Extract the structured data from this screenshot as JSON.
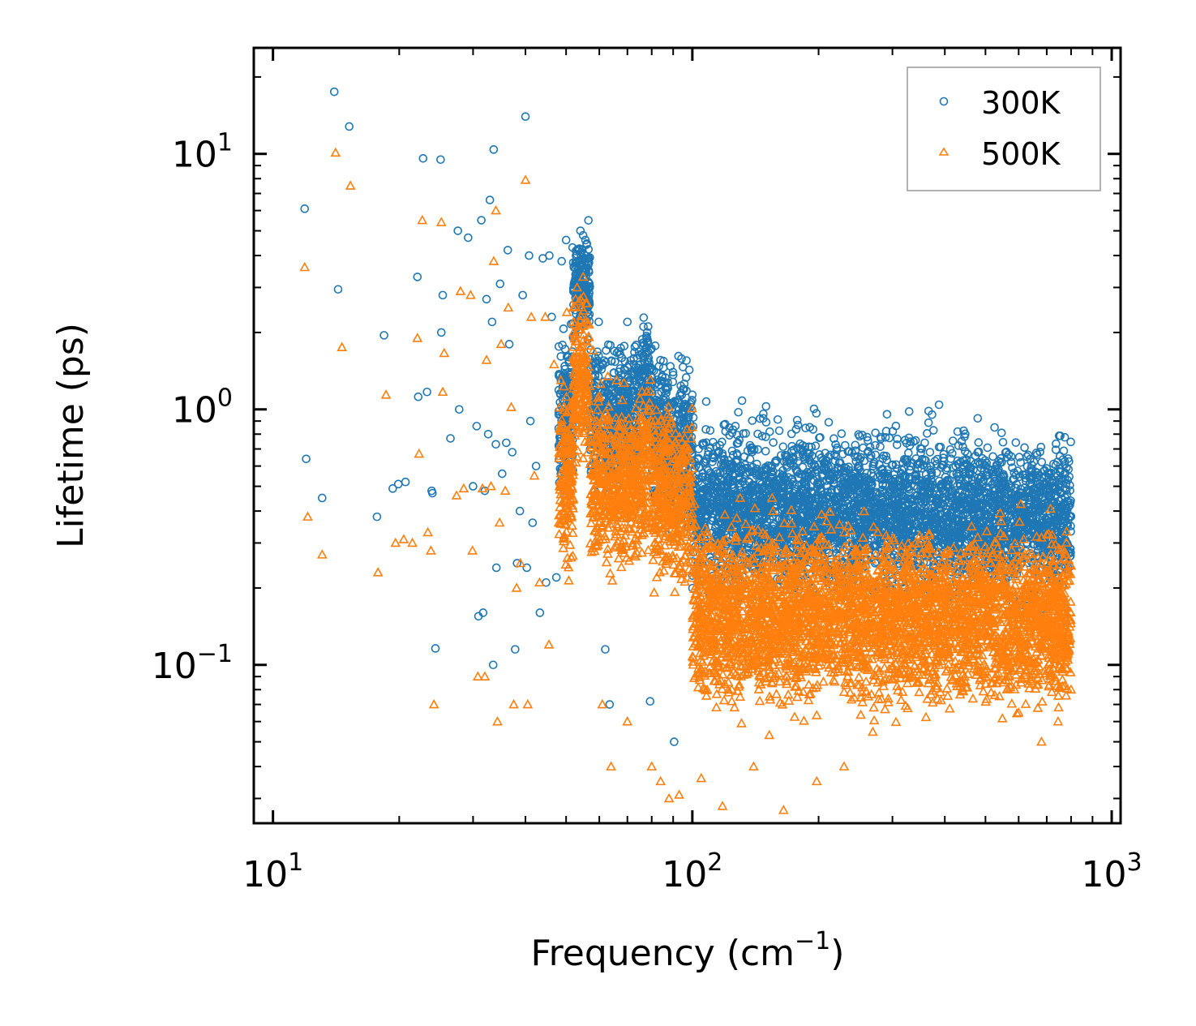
{
  "chart_data": {
    "type": "scatter",
    "xscale": "log",
    "yscale": "log",
    "xlim": [
      9,
      1050
    ],
    "ylim": [
      0.024,
      26
    ],
    "xlabel": "Frequency (cm",
    "xlabel_sup": "−1",
    "xlabel_end": ")",
    "ylabel": "Lifetime (ps)",
    "x_ticks": [
      {
        "base": "10",
        "exp": "1",
        "value": 10
      },
      {
        "base": "10",
        "exp": "2",
        "value": 100
      },
      {
        "base": "10",
        "exp": "3",
        "value": 1000
      }
    ],
    "y_ticks": [
      {
        "base": "10",
        "exp": "−1",
        "value": 0.1
      },
      {
        "base": "10",
        "exp": "0",
        "value": 1
      },
      {
        "base": "10",
        "exp": "1",
        "value": 10
      }
    ],
    "legend": {
      "position": "top-right"
    },
    "series": [
      {
        "name": "300K",
        "marker": "circle",
        "color": "#1f77b4",
        "points": [
          [
            11.9,
            6.1
          ],
          [
            12.0,
            0.64
          ],
          [
            13.1,
            0.45
          ],
          [
            14.0,
            17.5
          ],
          [
            14.3,
            2.95
          ],
          [
            15.2,
            12.8
          ],
          [
            17.7,
            0.38
          ],
          [
            18.4,
            1.95
          ],
          [
            19.3,
            0.49
          ],
          [
            19.9,
            0.51
          ],
          [
            20.7,
            0.52
          ],
          [
            22.1,
            3.3
          ],
          [
            22.2,
            1.12
          ],
          [
            22.8,
            9.6
          ],
          [
            23.3,
            1.17
          ],
          [
            23.9,
            0.48
          ],
          [
            24.0,
            0.47
          ],
          [
            24.4,
            0.116
          ],
          [
            25.1,
            9.5
          ],
          [
            25.2,
            2.0
          ],
          [
            25.4,
            2.8
          ],
          [
            26.5,
            0.77
          ],
          [
            27.6,
            5.0
          ],
          [
            27.8,
            1.0
          ],
          [
            29.2,
            4.7
          ],
          [
            30.0,
            0.5
          ],
          [
            30.6,
            0.86
          ],
          [
            30.9,
            0.155
          ],
          [
            31.4,
            5.5
          ],
          [
            31.7,
            0.16
          ],
          [
            32.0,
            0.48
          ],
          [
            32.3,
            2.7
          ],
          [
            32.6,
            0.8
          ],
          [
            32.9,
            6.6
          ],
          [
            33.3,
            2.2
          ],
          [
            33.6,
            10.4
          ],
          [
            33.5,
            0.1
          ],
          [
            34.0,
            0.73
          ],
          [
            34.1,
            0.24
          ],
          [
            34.8,
            3.1
          ],
          [
            35.2,
            0.56
          ],
          [
            36.0,
            0.74
          ],
          [
            36.3,
            4.2
          ],
          [
            36.6,
            1.8
          ],
          [
            37.2,
            0.68
          ],
          [
            37.8,
            0.115
          ],
          [
            38.2,
            0.25
          ],
          [
            38.8,
            0.4
          ],
          [
            39.4,
            2.8
          ],
          [
            40.0,
            14.0
          ],
          [
            40.3,
            0.24
          ],
          [
            40.8,
            4.0
          ],
          [
            41.1,
            0.9
          ],
          [
            41.6,
            0.36
          ],
          [
            42.4,
            0.6
          ],
          [
            43.3,
            0.16
          ],
          [
            44.0,
            3.9
          ],
          [
            44.8,
            0.21
          ],
          [
            45.6,
            4.0
          ],
          [
            46.2,
            2.3
          ],
          [
            47.4,
            0.22
          ],
          [
            48.8,
            3.8
          ],
          [
            50.0,
            4.6
          ],
          [
            51.8,
            4.3
          ],
          [
            53.4,
            4.2
          ],
          [
            54.1,
            5.0
          ],
          [
            54.9,
            4.8
          ],
          [
            55.6,
            4.6
          ],
          [
            56.5,
            3.8
          ],
          [
            59.8,
            2.2
          ],
          [
            62.0,
            0.115
          ],
          [
            63.5,
            0.07
          ],
          [
            64.5,
            0.84
          ],
          [
            70.0,
            2.2
          ],
          [
            72.5,
            1.3
          ],
          [
            75.2,
            1.5
          ],
          [
            77.8,
            1.9
          ],
          [
            79.3,
            0.072
          ],
          [
            83.5,
            0.56
          ],
          [
            90.5,
            0.05
          ],
          [
            103.0,
            0.42
          ],
          [
            120.0,
            0.82
          ],
          [
            132.0,
            0.58
          ],
          [
            145.0,
            0.92
          ],
          [
            167.0,
            0.65
          ],
          [
            212.0,
            0.55
          ],
          [
            262.0,
            0.68
          ],
          [
            300.0,
            0.5
          ],
          [
            345.0,
            0.38
          ],
          [
            395.0,
            0.48
          ],
          [
            468.0,
            0.3
          ],
          [
            610.0,
            0.4
          ],
          [
            705.0,
            0.43
          ],
          [
            760.0,
            0.32
          ],
          [
            795.0,
            0.38
          ]
        ]
      },
      {
        "name": "500K",
        "marker": "triangle",
        "color": "#ff7f0e",
        "points": [
          [
            11.9,
            3.6
          ],
          [
            12.1,
            0.38
          ],
          [
            13.1,
            0.27
          ],
          [
            14.1,
            10.1
          ],
          [
            14.6,
            1.75
          ],
          [
            15.3,
            7.5
          ],
          [
            17.8,
            0.23
          ],
          [
            18.6,
            1.14
          ],
          [
            19.6,
            0.3
          ],
          [
            20.5,
            0.31
          ],
          [
            21.5,
            0.3
          ],
          [
            22.1,
            1.9
          ],
          [
            22.3,
            0.67
          ],
          [
            22.7,
            5.5
          ],
          [
            23.4,
            0.33
          ],
          [
            23.8,
            0.28
          ],
          [
            24.2,
            0.07
          ],
          [
            25.2,
            5.4
          ],
          [
            25.4,
            1.17
          ],
          [
            25.6,
            1.66
          ],
          [
            27.4,
            0.46
          ],
          [
            28.0,
            2.9
          ],
          [
            28.5,
            0.49
          ],
          [
            29.6,
            2.8
          ],
          [
            29.9,
            0.28
          ],
          [
            30.8,
            0.09
          ],
          [
            31.6,
            0.49
          ],
          [
            32.0,
            0.09
          ],
          [
            32.3,
            1.56
          ],
          [
            33.1,
            0.5
          ],
          [
            33.6,
            3.8
          ],
          [
            34.0,
            6.0
          ],
          [
            34.3,
            0.06
          ],
          [
            34.7,
            0.36
          ],
          [
            35.0,
            1.8
          ],
          [
            35.8,
            0.48
          ],
          [
            36.4,
            2.5
          ],
          [
            37.0,
            1.02
          ],
          [
            37.5,
            0.07
          ],
          [
            38.1,
            0.2
          ],
          [
            38.9,
            0.25
          ],
          [
            40.0,
            7.9
          ],
          [
            40.5,
            0.07
          ],
          [
            41.3,
            2.3
          ],
          [
            42.0,
            0.55
          ],
          [
            43.2,
            0.21
          ],
          [
            44.6,
            2.3
          ],
          [
            45.5,
            0.12
          ],
          [
            46.8,
            1.5
          ],
          [
            48.6,
            1.3
          ],
          [
            50.2,
            2.4
          ],
          [
            52.0,
            2.5
          ],
          [
            53.1,
            3.0
          ],
          [
            54.2,
            2.7
          ],
          [
            54.9,
            3.3
          ],
          [
            55.8,
            2.6
          ],
          [
            58.0,
            1.7
          ],
          [
            61.0,
            0.07
          ],
          [
            64.0,
            0.04
          ],
          [
            66.0,
            1.3
          ],
          [
            70.0,
            0.06
          ],
          [
            75.0,
            1.1
          ],
          [
            78.4,
            1.0
          ],
          [
            80.0,
            0.04
          ],
          [
            84.0,
            0.035
          ],
          [
            88.0,
            0.03
          ],
          [
            93.0,
            0.031
          ],
          [
            105.0,
            0.036
          ],
          [
            118.0,
            0.028
          ],
          [
            130.0,
            0.45
          ],
          [
            140.0,
            0.04
          ],
          [
            155.0,
            0.45
          ],
          [
            165.0,
            0.027
          ],
          [
            198.0,
            0.035
          ],
          [
            230.0,
            0.04
          ],
          [
            288.0,
            0.067
          ],
          [
            330.0,
            0.28
          ],
          [
            400.0,
            0.21
          ],
          [
            520.0,
            0.085
          ],
          [
            600.0,
            0.065
          ],
          [
            680.0,
            0.05
          ],
          [
            745.0,
            0.06
          ],
          [
            800.0,
            0.08
          ]
        ]
      }
    ]
  }
}
